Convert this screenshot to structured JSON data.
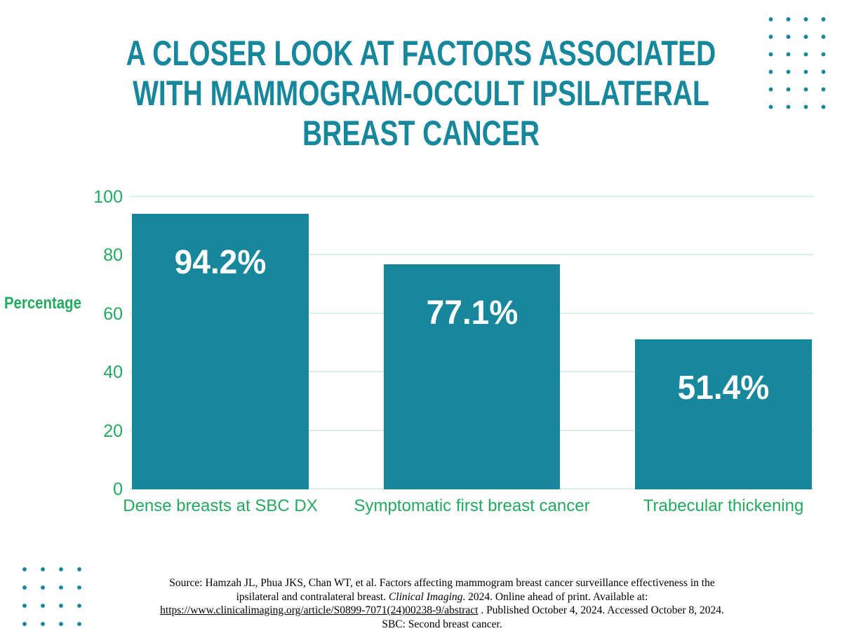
{
  "title": {
    "lines": [
      "A CLOSER LOOK AT FACTORS ASSOCIATED",
      "WITH MAMMOGRAM-OCCULT IPSILATERAL",
      "BREAST CANCER"
    ]
  },
  "chart_data": {
    "type": "bar",
    "categories": [
      "Dense breasts at SBC DX",
      "Symptomatic first breast cancer",
      "Trabecular thickening"
    ],
    "values": [
      94.2,
      77.1,
      51.4
    ],
    "value_labels": [
      "94.2%",
      "77.1%",
      "51.4%"
    ],
    "title": "A CLOSER LOOK AT FACTORS ASSOCIATED WITH MAMMOGRAM-OCCULT IPSILATERAL BREAST CANCER",
    "xlabel": "",
    "ylabel": "Percentage",
    "ylim": [
      0,
      100
    ],
    "yticks": [
      0,
      20,
      40,
      60,
      80,
      100
    ],
    "grid": true,
    "legend": false,
    "bar_color": "#17879c",
    "axis_label_color": "#23aa5f",
    "value_label_color": "#ffffff"
  },
  "source": {
    "line1": "Source: Hamzah JL, Phua JKS, Chan WT, et al. Factors affecting mammogram breast cancer surveillance effectiveness in the",
    "line2_pre": "ipsilateral and contralateral breast. ",
    "line2_journal": "Clinical Imaging",
    "line2_post": ". 2024. Online ahead of print. Available at:",
    "line3_link": "https://www.clinicalimaging.org/article/S0899-7071(24)00238-9/abstract",
    "line3_post": " . Published October 4, 2024. Accessed October 8, 2024.",
    "line4": "SBC: Second breast cancer."
  },
  "colors": {
    "teal": "#17879c",
    "green": "#23aa5f",
    "gridline": "#d9efe9",
    "background": "#ffffff"
  }
}
